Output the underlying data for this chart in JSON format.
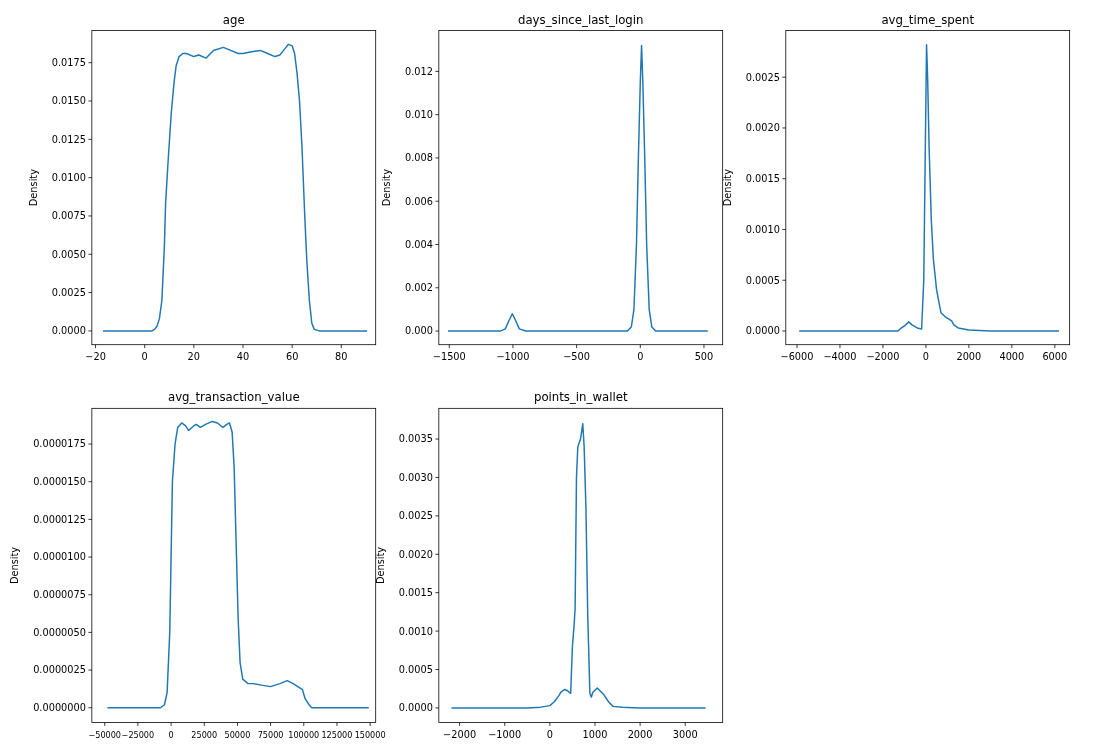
{
  "chart_data": [
    {
      "type": "line",
      "title": "age",
      "ylabel": "Density",
      "xlim": [
        -21.5,
        94
      ],
      "ylim": [
        -0.0009,
        0.0196
      ],
      "xticks": [
        {
          "value": -20,
          "label": "−20"
        },
        0,
        20,
        40,
        60,
        80
      ],
      "yticks": [
        {
          "value": 0,
          "label": "0.0000"
        },
        {
          "value": 0.0025,
          "label": "0.0025"
        },
        {
          "value": 0.005,
          "label": "0.0050"
        },
        {
          "value": 0.0075,
          "label": "0.0075"
        },
        {
          "value": 0.01,
          "label": "0.0100"
        },
        {
          "value": 0.0125,
          "label": "0.0125"
        },
        {
          "value": 0.015,
          "label": "0.0150"
        },
        {
          "value": 0.0175,
          "label": "0.0175"
        }
      ],
      "series": [
        {
          "color": "#1f77b4",
          "x": [
            -17,
            3,
            4,
            5,
            6,
            7,
            8,
            8.5,
            9.5,
            10.8,
            12,
            12.8,
            14,
            15.5,
            17,
            20,
            22,
            25,
            28,
            32,
            35,
            38,
            40,
            43,
            47,
            50,
            53,
            55,
            57,
            58.5,
            60,
            61,
            62,
            63,
            64,
            65,
            65.5,
            66,
            67,
            68,
            69,
            71,
            90.5
          ],
          "values": [
            0,
            0,
            0.0001,
            0.0003,
            0.0008,
            0.002,
            0.0055,
            0.0083,
            0.011,
            0.0142,
            0.0163,
            0.0173,
            0.0179,
            0.0181,
            0.0181,
            0.0179,
            0.018,
            0.0178,
            0.0183,
            0.0185,
            0.0183,
            0.0181,
            0.0181,
            0.0182,
            0.0183,
            0.0181,
            0.0179,
            0.018,
            0.0184,
            0.0187,
            0.0186,
            0.0181,
            0.0168,
            0.015,
            0.012,
            0.008,
            0.0062,
            0.0045,
            0.002,
            0.0005,
            0.0001,
            0,
            0
          ]
        }
      ]
    },
    {
      "type": "line",
      "title": "days_since_last_login",
      "ylabel": "Density",
      "xlim": [
        -1582,
        647
      ],
      "ylim": [
        -0.00063,
        0.01389
      ],
      "xticks": [
        {
          "value": -1500,
          "label": "−1500"
        },
        {
          "value": -1000,
          "label": "−1000"
        },
        {
          "value": -500,
          "label": "−500"
        },
        0,
        500
      ],
      "yticks": [
        {
          "value": 0,
          "label": "0.000"
        },
        {
          "value": 0.002,
          "label": "0.002"
        },
        {
          "value": 0.004,
          "label": "0.004"
        },
        {
          "value": 0.006,
          "label": "0.006"
        },
        {
          "value": 0.008,
          "label": "0.008"
        },
        {
          "value": 0.01,
          "label": "0.010"
        },
        {
          "value": 0.012,
          "label": "0.012"
        }
      ],
      "series": [
        {
          "color": "#1f77b4",
          "x": [
            -1510,
            -1100,
            -1060,
            -1030,
            -1005,
            -980,
            -950,
            -900,
            -100,
            -70,
            -50,
            -30,
            -15,
            0,
            10,
            20,
            35,
            50,
            70,
            90,
            120,
            530
          ],
          "values": [
            0,
            0,
            0.0001,
            0.0005,
            0.0008,
            0.0005,
            0.0001,
            0,
            0,
            0.0002,
            0.001,
            0.004,
            0.008,
            0.0115,
            0.0132,
            0.0115,
            0.008,
            0.004,
            0.001,
            0.0002,
            0,
            0
          ]
        }
      ]
    },
    {
      "type": "line",
      "title": "avg_time_spent",
      "ylabel": "Density",
      "xlim": [
        -6520,
        6690
      ],
      "ylim": [
        -0.000135,
        0.00296
      ],
      "xticks": [
        {
          "value": -6000,
          "label": "−6000"
        },
        {
          "value": -4000,
          "label": "−4000"
        },
        {
          "value": -2000,
          "label": "−2000"
        },
        0,
        2000,
        4000,
        6000
      ],
      "yticks": [
        {
          "value": 0,
          "label": "0.0000"
        },
        {
          "value": 0.0005,
          "label": "0.0005"
        },
        {
          "value": 0.001,
          "label": "0.0010"
        },
        {
          "value": 0.0015,
          "label": "0.0015"
        },
        {
          "value": 0.002,
          "label": "0.0020"
        },
        {
          "value": 0.0025,
          "label": "0.0025"
        }
      ],
      "series": [
        {
          "color": "#1f77b4",
          "x": [
            -5900,
            -1300,
            -1200,
            -1000,
            -800,
            -650,
            -400,
            -200,
            -100,
            -50,
            30,
            80,
            150,
            250,
            350,
            500,
            700,
            900,
            1200,
            1300,
            1500,
            2000,
            3000,
            6200
          ],
          "values": [
            0,
            0,
            2e-05,
            5e-05,
            9e-05,
            6e-05,
            3e-05,
            2e-05,
            0.0005,
            0.0014,
            0.00282,
            0.0025,
            0.0018,
            0.0011,
            0.0007,
            0.0004,
            0.00018,
            0.00014,
            0.0001,
            6e-05,
            3e-05,
            1e-05,
            0,
            0
          ]
        }
      ]
    },
    {
      "type": "line",
      "title": "avg_transaction_value",
      "ylabel": "Density",
      "xlim": [
        -59700,
        154200
      ],
      "ylim": [
        -9.8e-07,
        1.987e-05
      ],
      "xticks": [
        {
          "value": -50000,
          "label": "−50000"
        },
        {
          "value": -25000,
          "label": "−25000"
        },
        0,
        25000,
        50000,
        75000,
        100000,
        125000,
        150000
      ],
      "yticks": [
        {
          "value": 0,
          "label": "0.0000000"
        },
        {
          "value": 2.5e-06,
          "label": "0.0000025"
        },
        {
          "value": 5e-06,
          "label": "0.0000050"
        },
        {
          "value": 7.5e-06,
          "label": "0.0000075"
        },
        {
          "value": 1e-05,
          "label": "0.0000100"
        },
        {
          "value": 1.25e-05,
          "label": "0.0000125"
        },
        {
          "value": 1.5e-05,
          "label": "0.0000150"
        },
        {
          "value": 1.75e-05,
          "label": "0.0000175"
        }
      ],
      "series": [
        {
          "color": "#1f77b4",
          "x": [
            -48000,
            -8000,
            -5000,
            -3000,
            -1000,
            0,
            1000,
            3000,
            5000,
            8000,
            11000,
            13200,
            17000,
            19000,
            22000,
            26000,
            31000,
            35000,
            39000,
            42000,
            44000,
            46000,
            47500,
            49000,
            50500,
            52000,
            54000,
            58000,
            62000,
            68000,
            75000,
            82000,
            87500,
            92000,
            99000,
            101000,
            104000,
            106000,
            149000
          ],
          "values": [
            0,
            0,
            2e-07,
            1e-06,
            5e-06,
            1e-05,
            1.5e-05,
            1.75e-05,
            1.86e-05,
            1.89e-05,
            1.87e-05,
            1.84e-05,
            1.87e-05,
            1.88e-05,
            1.86e-05,
            1.88e-05,
            1.9e-05,
            1.89e-05,
            1.86e-05,
            1.88e-05,
            1.89e-05,
            1.83e-05,
            1.6e-05,
            1.1e-05,
            6e-06,
            3e-06,
            1.9e-06,
            1.6e-06,
            1.6e-06,
            1.5e-06,
            1.4e-06,
            1.6e-06,
            1.8e-06,
            1.6e-06,
            1.2e-06,
            6e-07,
            2e-07,
            0,
            0
          ]
        }
      ]
    },
    {
      "type": "line",
      "title": "points_in_wallet",
      "ylabel": "Density",
      "xlim": [
        -2460,
        3830
      ],
      "ylim": [
        -0.00019,
        0.0039
      ],
      "xticks": [
        {
          "value": -2000,
          "label": "−2000"
        },
        {
          "value": -1000,
          "label": "−1000"
        },
        0,
        1000,
        2000,
        3000
      ],
      "yticks": [
        {
          "value": 0,
          "label": "0.0000"
        },
        {
          "value": 0.0005,
          "label": "0.0005"
        },
        {
          "value": 0.001,
          "label": "0.0010"
        },
        {
          "value": 0.0015,
          "label": "0.0015"
        },
        {
          "value": 0.002,
          "label": "0.0020"
        },
        {
          "value": 0.0025,
          "label": "0.0025"
        },
        {
          "value": 0.003,
          "label": "0.0030"
        },
        {
          "value": 0.0035,
          "label": "0.0035"
        }
      ],
      "series": [
        {
          "color": "#1f77b4",
          "x": [
            -2180,
            -500,
            -200,
            0,
            100,
            200,
            250,
            330,
            400,
            462,
            500,
            540,
            560,
            590,
            620,
            680,
            730,
            760,
            800,
            840,
            887,
            920,
            950,
            1050,
            1150,
            1200,
            1300,
            1400,
            1600,
            2000,
            3450
          ],
          "values": [
            0,
            0,
            1e-05,
            3e-05,
            8e-05,
            0.00016,
            0.00021,
            0.00024,
            0.00022,
            0.00019,
            0.0008,
            0.0011,
            0.0013,
            0.003,
            0.0034,
            0.0035,
            0.0037,
            0.0034,
            0.0026,
            0.0012,
            0.00019,
            0.00014,
            0.0002,
            0.00026,
            0.0002,
            0.00017,
            8e-05,
            2e-05,
            1e-05,
            0,
            0
          ]
        }
      ]
    }
  ]
}
